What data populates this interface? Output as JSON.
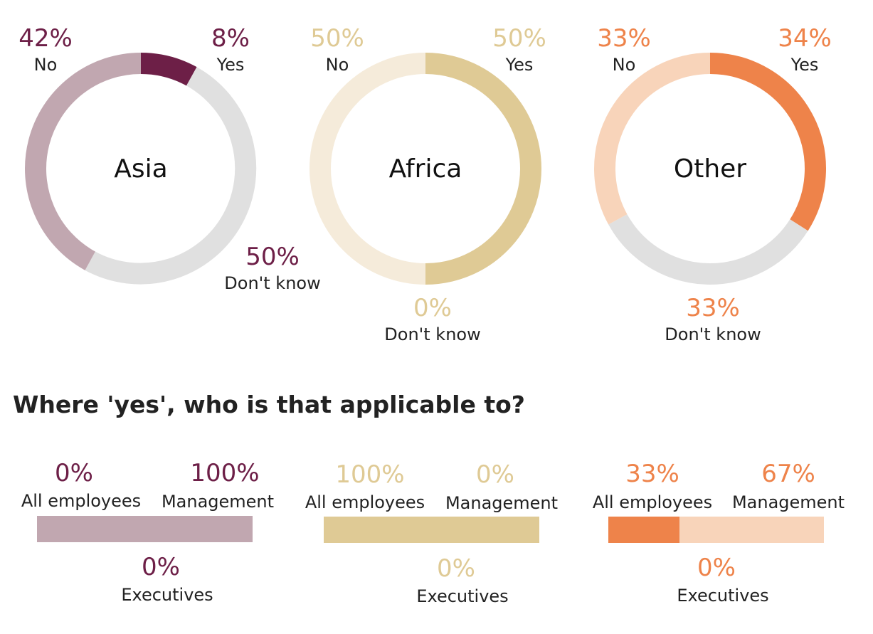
{
  "donuts": [
    {
      "region": "Asia",
      "colors": {
        "yes": "#6d1f47",
        "no": "#c1a7b0",
        "dont_know": "#e0e0e0",
        "label": "#6d1f47"
      },
      "slices": [
        {
          "key": "yes",
          "label": "Yes",
          "value": 8,
          "pct_text": "8%"
        },
        {
          "key": "dont_know",
          "label": "Don't know",
          "value": 50,
          "pct_text": "50%"
        },
        {
          "key": "no",
          "label": "No",
          "value": 42,
          "pct_text": "42%"
        }
      ]
    },
    {
      "region": "Africa",
      "colors": {
        "yes": "#dfca95",
        "no": "#f5ebda",
        "dont_know": "#e0e0e0",
        "label": "#dfca95"
      },
      "slices": [
        {
          "key": "yes",
          "label": "Yes",
          "value": 50,
          "pct_text": "50%"
        },
        {
          "key": "dont_know",
          "label": "Don't know",
          "value": 0,
          "pct_text": "0%"
        },
        {
          "key": "no",
          "label": "No",
          "value": 50,
          "pct_text": "50%"
        }
      ]
    },
    {
      "region": "Other",
      "colors": {
        "yes": "#ee834a",
        "no": "#f8d4ba",
        "dont_know": "#e0e0e0",
        "label": "#ee834a"
      },
      "slices": [
        {
          "key": "yes",
          "label": "Yes",
          "value": 34,
          "pct_text": "34%"
        },
        {
          "key": "dont_know",
          "label": "Don't know",
          "value": 33,
          "pct_text": "33%"
        },
        {
          "key": "no",
          "label": "No",
          "value": 33,
          "pct_text": "33%"
        }
      ]
    }
  ],
  "section_heading": "Where 'yes', who is that applicable to?",
  "bars": [
    {
      "colors": {
        "all_employees": "#c1a7b0",
        "management": "#c1a7b0",
        "label": "#6d1f47"
      },
      "segments": [
        {
          "key": "all_employees",
          "label": "All employees",
          "value": 0,
          "pct_text": "0%"
        },
        {
          "key": "management",
          "label": "Management",
          "value": 100,
          "pct_text": "100%"
        },
        {
          "key": "executives",
          "label": "Executives",
          "value": 0,
          "pct_text": "0%"
        }
      ]
    },
    {
      "colors": {
        "all_employees": "#dfca95",
        "management": "#dfca95",
        "label": "#dfca95"
      },
      "segments": [
        {
          "key": "all_employees",
          "label": "All employees",
          "value": 100,
          "pct_text": "100%"
        },
        {
          "key": "management",
          "label": "Management",
          "value": 0,
          "pct_text": "0%"
        },
        {
          "key": "executives",
          "label": "Executives",
          "value": 0,
          "pct_text": "0%"
        }
      ]
    },
    {
      "colors": {
        "all_employees": "#ee834a",
        "management": "#f8d4ba",
        "label": "#ee834a"
      },
      "segments": [
        {
          "key": "all_employees",
          "label": "All employees",
          "value": 33,
          "pct_text": "33%"
        },
        {
          "key": "management",
          "label": "Management",
          "value": 67,
          "pct_text": "67%"
        },
        {
          "key": "executives",
          "label": "Executives",
          "value": 0,
          "pct_text": "0%"
        }
      ]
    }
  ],
  "chart_data": [
    {
      "type": "pie",
      "title": "Asia",
      "categories": [
        "Yes",
        "Don't know",
        "No"
      ],
      "values": [
        8,
        50,
        42
      ]
    },
    {
      "type": "pie",
      "title": "Africa",
      "categories": [
        "Yes",
        "Don't know",
        "No"
      ],
      "values": [
        50,
        0,
        50
      ]
    },
    {
      "type": "pie",
      "title": "Other",
      "categories": [
        "Yes",
        "Don't know",
        "No"
      ],
      "values": [
        34,
        33,
        33
      ]
    },
    {
      "type": "bar",
      "categories": [
        "All employees",
        "Management",
        "Executives"
      ],
      "values": [
        0,
        100,
        0
      ]
    },
    {
      "type": "bar",
      "categories": [
        "All employees",
        "Management",
        "Executives"
      ],
      "values": [
        100,
        0,
        0
      ]
    },
    {
      "type": "bar",
      "categories": [
        "All employees",
        "Management",
        "Executives"
      ],
      "values": [
        33,
        67,
        0
      ]
    }
  ]
}
